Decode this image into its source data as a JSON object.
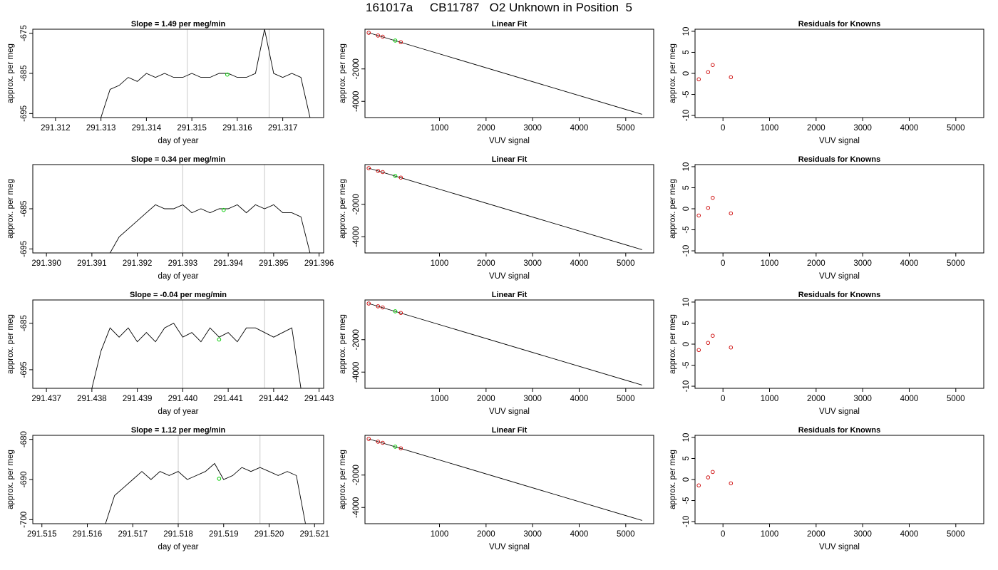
{
  "page": {
    "title": "161017a     CB11787   O2 Unknown in Position  5"
  },
  "chart_data": [
    {
      "type": "line",
      "panel": "timeseries",
      "row": 0,
      "title": "Slope =  1.49  per meg/min",
      "xlabel": "day of year",
      "ylabel": "approx. per meg",
      "xlim": [
        291.3115,
        291.3179
      ],
      "ylim": [
        -696,
        -674
      ],
      "xticks": [
        291.312,
        291.313,
        291.314,
        291.315,
        291.316,
        291.317
      ],
      "xtick_labels": [
        "291.312",
        "291.313",
        "291.314",
        "291.315",
        "291.316",
        "291.317"
      ],
      "yticks": [
        -695,
        -685,
        -675
      ],
      "ytick_labels": [
        "-695",
        "-685",
        "-675"
      ],
      "vlines": [
        291.3149,
        291.3167
      ],
      "series": [
        {
          "color": "#000000",
          "x": [
            291.313,
            291.3132,
            291.3134,
            291.3136,
            291.3138,
            291.314,
            291.3142,
            291.3144,
            291.3146,
            291.3148,
            291.315,
            291.3152,
            291.3154,
            291.3156,
            291.3158,
            291.316,
            291.3162,
            291.3164,
            291.3166,
            291.3168,
            291.317,
            291.3172,
            291.3174,
            291.3176
          ],
          "y": [
            -696,
            -689,
            -688,
            -686,
            -687,
            -685,
            -686,
            -685,
            -686,
            -686,
            -685,
            -686,
            -686,
            -685,
            -685,
            -686,
            -686,
            -685,
            -674,
            -685,
            -686,
            -685,
            -686,
            -696
          ]
        }
      ],
      "marker": {
        "x": 291.31578,
        "y": -685.3,
        "color": "#00cc00"
      }
    },
    {
      "type": "scatter",
      "panel": "linear-fit",
      "row": 0,
      "title": "Linear Fit",
      "xlabel": "VUV signal",
      "ylabel": "approx. per meg",
      "xlim": [
        -600,
        5600
      ],
      "ylim": [
        -5000,
        450
      ],
      "xticks": [
        1000,
        2000,
        3000,
        4000,
        5000
      ],
      "xtick_labels": [
        "1000",
        "2000",
        "3000",
        "4000",
        "5000"
      ],
      "yticks": [
        -4000,
        -2000
      ],
      "ytick_labels": [
        "-4000",
        "-2000"
      ],
      "fit_line": {
        "x": [
          -520,
          5350
        ],
        "y": [
          230,
          -4800
        ]
      },
      "points": {
        "x": [
          -520,
          -320,
          -220,
          170
        ],
        "y": [
          230,
          60,
          -10,
          -350
        ],
        "color": "#cc0000"
      },
      "marker": {
        "x": 50,
        "y": -250,
        "color": "#00cc00"
      }
    },
    {
      "type": "scatter",
      "panel": "residuals",
      "row": 0,
      "title": "Residuals for Knowns",
      "xlabel": "VUV signal",
      "ylabel": "approx. per meg",
      "xlim": [
        -600,
        5600
      ],
      "ylim": [
        -10.5,
        10.5
      ],
      "xticks": [
        0,
        1000,
        2000,
        3000,
        4000,
        5000
      ],
      "xtick_labels": [
        "0",
        "1000",
        "2000",
        "3000",
        "4000",
        "5000"
      ],
      "yticks": [
        -10,
        -5,
        0,
        5,
        10
      ],
      "ytick_labels": [
        "-10",
        "-5",
        "0",
        "5",
        "10"
      ],
      "points": {
        "x": [
          -520,
          -320,
          -220,
          170
        ],
        "y": [
          -1.4,
          0.3,
          2.0,
          -0.9
        ],
        "color": "#cc0000"
      }
    },
    {
      "type": "line",
      "panel": "timeseries",
      "row": 1,
      "title": "Slope =  0.34  per meg/min",
      "xlabel": "day of year",
      "ylabel": "approx. per meg",
      "xlim": [
        291.3897,
        291.3961
      ],
      "ylim": [
        -696,
        -674
      ],
      "xticks": [
        291.39,
        291.391,
        291.392,
        291.393,
        291.394,
        291.395,
        291.396
      ],
      "xtick_labels": [
        "291.390",
        "291.391",
        "291.392",
        "291.393",
        "291.394",
        "291.395",
        "291.396"
      ],
      "yticks": [
        -695,
        -685
      ],
      "ytick_labels": [
        "-695",
        "-685"
      ],
      "vlines": [
        291.393,
        291.3948
      ],
      "series": [
        {
          "color": "#000000",
          "x": [
            291.3914,
            291.3916,
            291.3918,
            291.392,
            291.3922,
            291.3924,
            291.3926,
            291.3928,
            291.393,
            291.3932,
            291.3934,
            291.3936,
            291.3938,
            291.394,
            291.3942,
            291.3944,
            291.3946,
            291.3948,
            291.395,
            291.3952,
            291.3954,
            291.3956,
            291.3958
          ],
          "y": [
            -696,
            -692,
            -690,
            -688,
            -686,
            -684,
            -685,
            -685,
            -684,
            -686,
            -685,
            -686,
            -685,
            -685,
            -684,
            -686,
            -684,
            -685,
            -684,
            -686,
            -686,
            -687,
            -696
          ]
        }
      ],
      "marker": {
        "x": 291.3939,
        "y": -685.3,
        "color": "#00cc00"
      }
    },
    {
      "type": "scatter",
      "panel": "linear-fit",
      "row": 1,
      "title": "Linear Fit",
      "xlabel": "VUV signal",
      "ylabel": "approx. per meg",
      "xlim": [
        -600,
        5600
      ],
      "ylim": [
        -5000,
        450
      ],
      "xticks": [
        1000,
        2000,
        3000,
        4000,
        5000
      ],
      "xtick_labels": [
        "1000",
        "2000",
        "3000",
        "4000",
        "5000"
      ],
      "yticks": [
        -4000,
        -2000
      ],
      "ytick_labels": [
        "-4000",
        "-2000"
      ],
      "fit_line": {
        "x": [
          -520,
          5350
        ],
        "y": [
          230,
          -4800
        ]
      },
      "points": {
        "x": [
          -520,
          -320,
          -220,
          170
        ],
        "y": [
          230,
          60,
          -10,
          -350
        ],
        "color": "#cc0000"
      },
      "marker": {
        "x": 50,
        "y": -250,
        "color": "#00cc00"
      }
    },
    {
      "type": "scatter",
      "panel": "residuals",
      "row": 1,
      "title": "Residuals for Knowns",
      "xlabel": "VUV signal",
      "ylabel": "approx. per meg",
      "xlim": [
        -600,
        5600
      ],
      "ylim": [
        -10.5,
        10.5
      ],
      "xticks": [
        0,
        1000,
        2000,
        3000,
        4000,
        5000
      ],
      "xtick_labels": [
        "0",
        "1000",
        "2000",
        "3000",
        "4000",
        "5000"
      ],
      "yticks": [
        -10,
        -5,
        0,
        5,
        10
      ],
      "ytick_labels": [
        "-10",
        "-5",
        "0",
        "5",
        "10"
      ],
      "points": {
        "x": [
          -520,
          -320,
          -220,
          170
        ],
        "y": [
          -1.6,
          0.2,
          2.6,
          -1.1
        ],
        "color": "#cc0000"
      }
    },
    {
      "type": "line",
      "panel": "timeseries",
      "row": 2,
      "title": "Slope =  -0.04  per meg/min",
      "xlabel": "day of year",
      "ylabel": "approx. per meg",
      "xlim": [
        291.4367,
        291.4431
      ],
      "ylim": [
        -699,
        -680
      ],
      "xticks": [
        291.437,
        291.438,
        291.439,
        291.44,
        291.441,
        291.442,
        291.443
      ],
      "xtick_labels": [
        "291.437",
        "291.438",
        "291.439",
        "291.440",
        "291.441",
        "291.442",
        "291.443"
      ],
      "yticks": [
        -695,
        -685
      ],
      "ytick_labels": [
        "-695",
        "-685"
      ],
      "vlines": [
        291.44,
        291.4418
      ],
      "series": [
        {
          "color": "#000000",
          "x": [
            291.438,
            291.4382,
            291.4384,
            291.4386,
            291.4388,
            291.439,
            291.4392,
            291.4394,
            291.4396,
            291.4398,
            291.44,
            291.4402,
            291.4404,
            291.4406,
            291.4408,
            291.441,
            291.4412,
            291.4414,
            291.4416,
            291.4418,
            291.442,
            291.4422,
            291.4424,
            291.4426
          ],
          "y": [
            -699,
            -691,
            -686,
            -688,
            -686,
            -689,
            -687,
            -689,
            -686,
            -685,
            -688,
            -687,
            -689,
            -686,
            -688,
            -687,
            -689,
            -686,
            -686,
            -687,
            -688,
            -687,
            -686,
            -699
          ]
        }
      ],
      "marker": {
        "x": 291.4408,
        "y": -688.5,
        "color": "#00cc00"
      }
    },
    {
      "type": "scatter",
      "panel": "linear-fit",
      "row": 2,
      "title": "Linear Fit",
      "xlabel": "VUV signal",
      "ylabel": "approx. per meg",
      "xlim": [
        -600,
        5600
      ],
      "ylim": [
        -5000,
        450
      ],
      "xticks": [
        1000,
        2000,
        3000,
        4000,
        5000
      ],
      "xtick_labels": [
        "1000",
        "2000",
        "3000",
        "4000",
        "5000"
      ],
      "yticks": [
        -4000,
        -2000
      ],
      "ytick_labels": [
        "-4000",
        "-2000"
      ],
      "fit_line": {
        "x": [
          -520,
          5350
        ],
        "y": [
          230,
          -4800
        ]
      },
      "points": {
        "x": [
          -520,
          -320,
          -220,
          170
        ],
        "y": [
          230,
          60,
          -10,
          -350
        ],
        "color": "#cc0000"
      },
      "marker": {
        "x": 50,
        "y": -250,
        "color": "#00cc00"
      }
    },
    {
      "type": "scatter",
      "panel": "residuals",
      "row": 2,
      "title": "Residuals for Knowns",
      "xlabel": "VUV signal",
      "ylabel": "approx. per meg",
      "xlim": [
        -600,
        5600
      ],
      "ylim": [
        -10.5,
        10.5
      ],
      "xticks": [
        0,
        1000,
        2000,
        3000,
        4000,
        5000
      ],
      "xtick_labels": [
        "0",
        "1000",
        "2000",
        "3000",
        "4000",
        "5000"
      ],
      "yticks": [
        -10,
        -5,
        0,
        5,
        10
      ],
      "ytick_labels": [
        "-10",
        "-5",
        "0",
        "5",
        "10"
      ],
      "points": {
        "x": [
          -520,
          -320,
          -220,
          170
        ],
        "y": [
          -1.4,
          0.3,
          2.0,
          -0.8
        ],
        "color": "#cc0000"
      }
    },
    {
      "type": "line",
      "panel": "timeseries",
      "row": 3,
      "title": "Slope =  1.12  per meg/min",
      "xlabel": "day of year",
      "ylabel": "approx. per meg",
      "xlim": [
        291.5148,
        291.5212
      ],
      "ylim": [
        -701,
        -679
      ],
      "xticks": [
        291.515,
        291.516,
        291.517,
        291.518,
        291.519,
        291.52,
        291.521
      ],
      "xtick_labels": [
        "291.515",
        "291.516",
        "291.517",
        "291.518",
        "291.519",
        "291.520",
        "291.521"
      ],
      "yticks": [
        -700,
        -690,
        -680
      ],
      "ytick_labels": [
        "-700",
        "-690",
        "-680"
      ],
      "vlines": [
        291.518,
        291.5198
      ],
      "series": [
        {
          "color": "#000000",
          "x": [
            291.5164,
            291.5166,
            291.5168,
            291.517,
            291.5172,
            291.5174,
            291.5176,
            291.5178,
            291.518,
            291.5182,
            291.5184,
            291.5186,
            291.5188,
            291.519,
            291.5192,
            291.5194,
            291.5196,
            291.5198,
            291.52,
            291.5202,
            291.5204,
            291.5206,
            291.5208
          ],
          "y": [
            -701,
            -694,
            -692,
            -690,
            -688,
            -690,
            -688,
            -689,
            -688,
            -690,
            -689,
            -688,
            -686,
            -690,
            -689,
            -687,
            -688,
            -687,
            -688,
            -689,
            -688,
            -689,
            -701
          ]
        }
      ],
      "marker": {
        "x": 291.5189,
        "y": -689.8,
        "color": "#00cc00"
      }
    },
    {
      "type": "scatter",
      "panel": "linear-fit",
      "row": 3,
      "title": "Linear Fit",
      "xlabel": "VUV signal",
      "ylabel": "approx. per meg",
      "xlim": [
        -600,
        5600
      ],
      "ylim": [
        -5000,
        450
      ],
      "xticks": [
        1000,
        2000,
        3000,
        4000,
        5000
      ],
      "xtick_labels": [
        "1000",
        "2000",
        "3000",
        "4000",
        "5000"
      ],
      "yticks": [
        -4000,
        -2000
      ],
      "ytick_labels": [
        "-4000",
        "-2000"
      ],
      "fit_line": {
        "x": [
          -520,
          5350
        ],
        "y": [
          230,
          -4800
        ]
      },
      "points": {
        "x": [
          -520,
          -320,
          -220,
          170
        ],
        "y": [
          230,
          60,
          -10,
          -350
        ],
        "color": "#cc0000"
      },
      "marker": {
        "x": 50,
        "y": -250,
        "color": "#00cc00"
      }
    },
    {
      "type": "scatter",
      "panel": "residuals",
      "row": 3,
      "title": "Residuals for Knowns",
      "xlabel": "VUV signal",
      "ylabel": "approx. per meg",
      "xlim": [
        -600,
        5600
      ],
      "ylim": [
        -10.5,
        10.5
      ],
      "xticks": [
        0,
        1000,
        2000,
        3000,
        4000,
        5000
      ],
      "xtick_labels": [
        "0",
        "1000",
        "2000",
        "3000",
        "4000",
        "5000"
      ],
      "yticks": [
        -10,
        -5,
        0,
        5,
        10
      ],
      "ytick_labels": [
        "-10",
        "-5",
        "0",
        "5",
        "10"
      ],
      "points": {
        "x": [
          -520,
          -320,
          -220,
          170
        ],
        "y": [
          -1.4,
          0.5,
          1.8,
          -0.9
        ],
        "color": "#cc0000"
      }
    }
  ]
}
